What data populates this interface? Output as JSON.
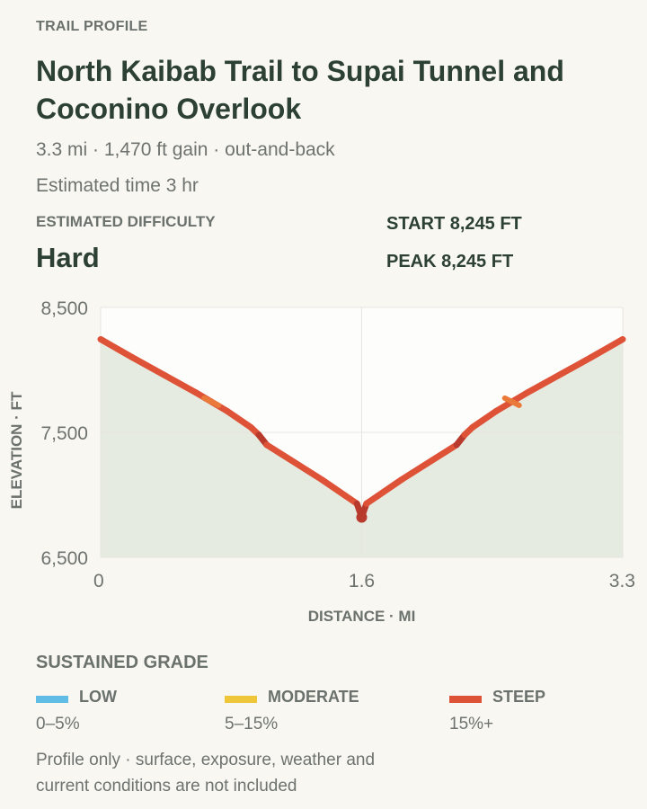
{
  "header": {
    "eyebrow": "TRAIL PROFILE",
    "title": "North Kaibab Trail to Supai Tunnel and Coconino Overlook",
    "summary": "3.3 mi · 1,470 ft gain · out-and-back",
    "estimated_time": "Estimated time 3 hr"
  },
  "difficulty": {
    "label": "ESTIMATED DIFFICULTY",
    "value": "Hard"
  },
  "stats": {
    "start": "START 8,245 FT",
    "peak": "PEAK 8,245 FT"
  },
  "chart_data": {
    "type": "line",
    "xlabel": "DISTANCE · MI",
    "ylabel": "ELEVATION · FT",
    "xlim": [
      0,
      3.3
    ],
    "ylim": [
      6500,
      8500
    ],
    "x_ticks": [
      {
        "value": 0,
        "label": "0"
      },
      {
        "value": 1.65,
        "label": "1.6"
      },
      {
        "value": 3.3,
        "label": "3.3"
      }
    ],
    "y_ticks": [
      {
        "value": 6500,
        "label": "6,500"
      },
      {
        "value": 7500,
        "label": "7,500"
      },
      {
        "value": 8500,
        "label": "8,500"
      }
    ],
    "grid": true,
    "series": [
      {
        "x": [
          0,
          0.2,
          0.4,
          0.6,
          0.8,
          0.95,
          1.0,
          1.05,
          1.2,
          1.4,
          1.55,
          1.62,
          1.65,
          1.68,
          1.75,
          1.9,
          2.1,
          2.25,
          2.3,
          2.35,
          2.5,
          2.7,
          2.9,
          3.1,
          3.3
        ],
        "y": [
          8245,
          8100,
          7960,
          7820,
          7670,
          7540,
          7480,
          7400,
          7280,
          7120,
          6990,
          6930,
          6820,
          6930,
          6990,
          7120,
          7280,
          7400,
          7480,
          7540,
          7670,
          7820,
          7960,
          8100,
          8245
        ],
        "grade": [
          "steep",
          "steep",
          "steep",
          "steep",
          "steep",
          "steep",
          "steep",
          "steep",
          "steep",
          "steep",
          "steep",
          "steep",
          "steep",
          "steep",
          "steep",
          "steep",
          "steep",
          "steep",
          "steep",
          "steep",
          "steep",
          "steep",
          "steep",
          "steep"
        ]
      }
    ]
  },
  "legend": {
    "title": "SUSTAINED GRADE",
    "items": [
      {
        "key": "low",
        "name": "LOW",
        "range": "0–5%",
        "color": "#62bde6"
      },
      {
        "key": "moderate",
        "name": "MODERATE",
        "range": "5–15%",
        "color": "#efc53a"
      },
      {
        "key": "steep",
        "name": "STEEP",
        "range": "15%+",
        "color": "#de5338"
      }
    ]
  },
  "colors": {
    "steep_dark": "#b83a2c",
    "steep_light": "#ea7a3a",
    "fill": "#e5ebe1",
    "plot_bg": "#fdfdfc"
  },
  "footnote": "Profile only · surface, exposure, weather and current conditions are not included"
}
